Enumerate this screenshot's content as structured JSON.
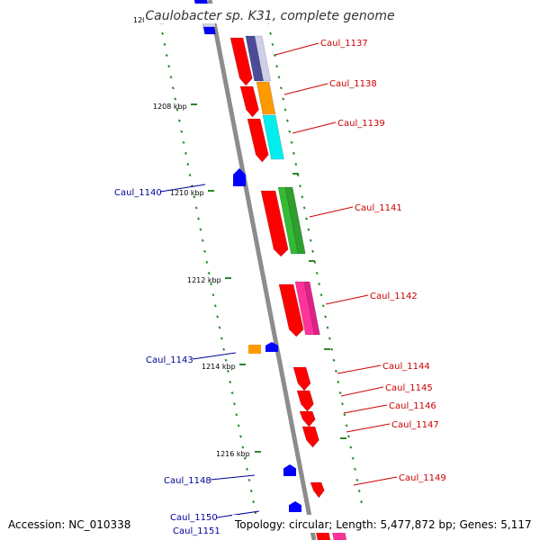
{
  "title": "Caulobacter sp. K31, complete genome",
  "accession": "Accession: NC_010338",
  "topology": "Topology: circular; Length: 5,477,872 bp; Genes: 5,117",
  "colors": {
    "backbone": "#8c8c8c",
    "tick": "#2a8a2a",
    "label_right": "#cc0000",
    "label_left": "#000099",
    "red": "#ff0000",
    "navy": "#4b4b99",
    "light": "#cfcfe8",
    "orange": "#ff9900",
    "cyan": "#00eeee",
    "green": "#33bb33",
    "pink": "#ff3399",
    "blue": "#0000ff"
  },
  "kbp_labels": [
    "1206 kbp",
    "1208 kbp",
    "1210 kbp",
    "1212 kbp",
    "1214 kbp",
    "1216 kbp"
  ],
  "genes_right": [
    {
      "name": "Caul_1137"
    },
    {
      "name": "Caul_1138"
    },
    {
      "name": "Caul_1139"
    },
    {
      "name": "Caul_1141"
    },
    {
      "name": "Caul_1142"
    },
    {
      "name": "Caul_1144"
    },
    {
      "name": "Caul_1145"
    },
    {
      "name": "Caul_1146"
    },
    {
      "name": "Caul_1147"
    },
    {
      "name": "Caul_1149"
    }
  ],
  "genes_left": [
    {
      "name": "Caul_1140"
    },
    {
      "name": "Caul_1143"
    },
    {
      "name": "Caul_1148"
    },
    {
      "name": "Caul_1150"
    },
    {
      "name": "Caul_1151"
    }
  ]
}
